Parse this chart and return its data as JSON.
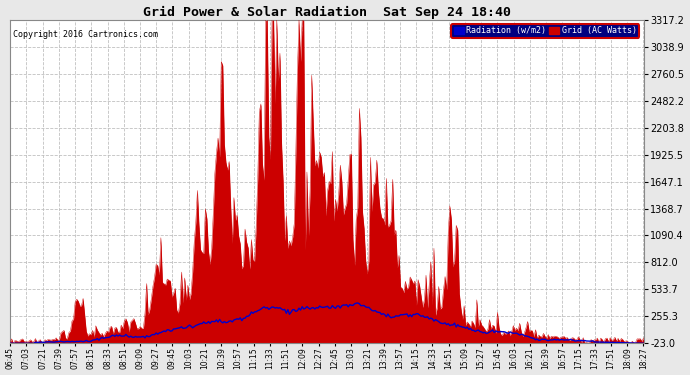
{
  "title": "Grid Power & Solar Radiation  Sat Sep 24 18:40",
  "copyright": "Copyright 2016 Cartronics.com",
  "background_color": "#e8e8e8",
  "plot_bg_color": "#ffffff",
  "ylim": [
    -23.0,
    3317.2
  ],
  "yticks": [
    -23.0,
    255.3,
    533.7,
    812.0,
    1090.4,
    1368.7,
    1647.1,
    1925.5,
    2203.8,
    2482.2,
    2760.5,
    3038.9,
    3317.2
  ],
  "grid_color": "#c0c0c0",
  "legend_labels": [
    "Radiation (w/m2)",
    "Grid (AC Watts)"
  ],
  "legend_bg": "#000080",
  "legend_border": "#ff0000",
  "radiation_line_color": "#0000cc",
  "grid_fill_color": "#cc0000",
  "grid_line_color": "#cc0000",
  "x_labels": [
    "06:45",
    "07:03",
    "07:21",
    "07:39",
    "07:57",
    "08:15",
    "08:33",
    "08:51",
    "09:09",
    "09:27",
    "09:45",
    "10:03",
    "10:21",
    "10:39",
    "10:57",
    "11:15",
    "11:33",
    "11:51",
    "12:09",
    "12:27",
    "12:45",
    "13:03",
    "13:21",
    "13:39",
    "13:57",
    "14:15",
    "14:33",
    "14:51",
    "15:09",
    "15:27",
    "15:45",
    "16:03",
    "16:21",
    "16:39",
    "16:57",
    "17:15",
    "17:33",
    "17:51",
    "18:09",
    "18:27"
  ]
}
